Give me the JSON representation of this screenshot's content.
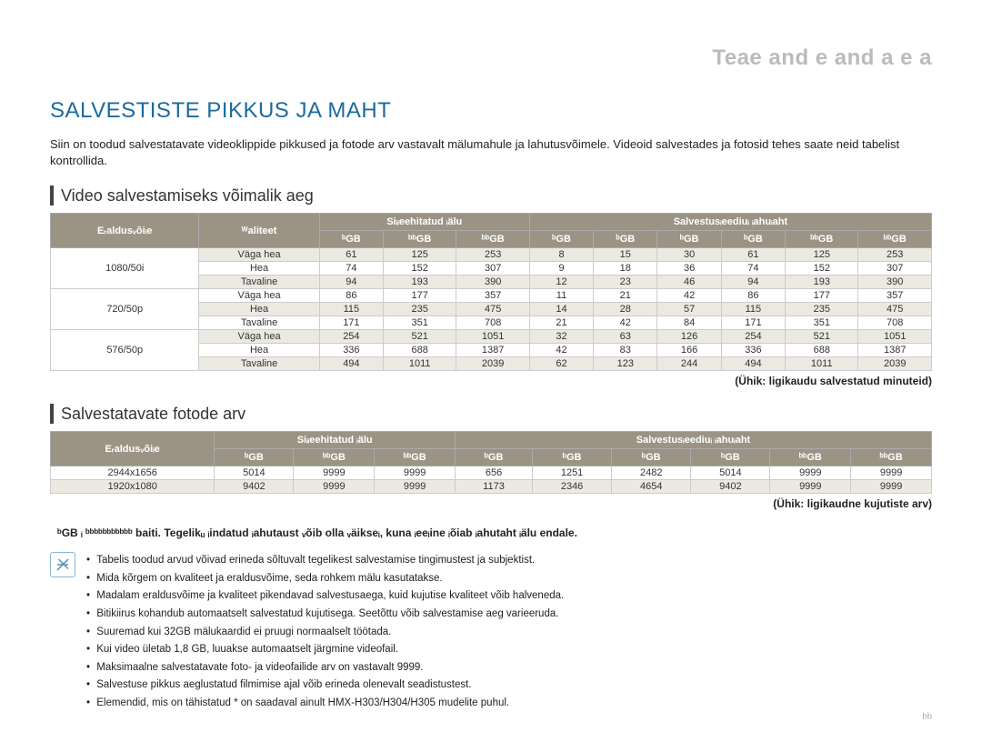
{
  "header": "Teae and e and a e    a",
  "main_title": "SALVESTISTE PIKKUS JA MAHT",
  "intro": "Siin on toodud salvestatavate videoklippide pikkused ja fotode arv vastavalt mälumahule ja lahutusvõimele. Videoid salvestades ja fotosid tehes saate neid tabelist kontrollida.",
  "section1": {
    "title": "Video salvestamiseks võimalik aeg",
    "unit": "(Ühik: ligikaudu salvestatud minuteid)",
    "header_row1": [
      "Eᵣaldusᵥõiᵢe",
      "ᵂaliteet",
      "Siᵢᵢeehitatud ᵢälu",
      "Salvestusᵢeediuᵢ ᵢahuᵢaht"
    ],
    "header_row2": [
      "ᵇGB",
      "ᵇᵇGB",
      "ᵇᵇGB",
      "ᵇGB",
      "ᵇGB",
      "ᵇGB",
      "ᵇGB",
      "ᵇᵇGB",
      "ᵇᵇGB"
    ],
    "groups": [
      {
        "res": "1080/50i",
        "rows": [
          {
            "q": "Väga hea",
            "v": [
              "61",
              "125",
              "253",
              "8",
              "15",
              "30",
              "61",
              "125",
              "253"
            ],
            "alt": true
          },
          {
            "q": "Hea",
            "v": [
              "74",
              "152",
              "307",
              "9",
              "18",
              "36",
              "74",
              "152",
              "307"
            ],
            "alt": false
          },
          {
            "q": "Tavaline",
            "v": [
              "94",
              "193",
              "390",
              "12",
              "23",
              "46",
              "94",
              "193",
              "390"
            ],
            "alt": true
          }
        ]
      },
      {
        "res": "720/50p",
        "rows": [
          {
            "q": "Väga hea",
            "v": [
              "86",
              "177",
              "357",
              "11",
              "21",
              "42",
              "86",
              "177",
              "357"
            ],
            "alt": false
          },
          {
            "q": "Hea",
            "v": [
              "115",
              "235",
              "475",
              "14",
              "28",
              "57",
              "115",
              "235",
              "475"
            ],
            "alt": true
          },
          {
            "q": "Tavaline",
            "v": [
              "171",
              "351",
              "708",
              "21",
              "42",
              "84",
              "171",
              "351",
              "708"
            ],
            "alt": false
          }
        ]
      },
      {
        "res": "576/50p",
        "rows": [
          {
            "q": "Väga hea",
            "v": [
              "254",
              "521",
              "1051",
              "32",
              "63",
              "126",
              "254",
              "521",
              "1051"
            ],
            "alt": true
          },
          {
            "q": "Hea",
            "v": [
              "336",
              "688",
              "1387",
              "42",
              "83",
              "166",
              "336",
              "688",
              "1387"
            ],
            "alt": false
          },
          {
            "q": "Tavaline",
            "v": [
              "494",
              "1011",
              "2039",
              "62",
              "123",
              "244",
              "494",
              "1011",
              "2039"
            ],
            "alt": true
          }
        ]
      }
    ]
  },
  "section2": {
    "title": "Salvestatavate fotode arv",
    "unit": "(Ühik: ligikaudne kujutiste arv)",
    "header_row1": [
      "Eᵣaldusᵥõiᵢe",
      "Siᵢᵢeehitatud ᵢälu",
      "Salvestusᵢeediuᵢ ᵢahuᵢaht"
    ],
    "header_row2": [
      "ᵇGB",
      "ᵇᵇGB",
      "ᵇᵇGB",
      "ᵇGB",
      "ᵇGB",
      "ᵇGB",
      "ᵇGB",
      "ᵇᵇGB",
      "ᵇᵇGB"
    ],
    "rows": [
      {
        "res": "2944x1656",
        "v": [
          "5014",
          "9999",
          "9999",
          "656",
          "1251",
          "2482",
          "5014",
          "9999",
          "9999"
        ],
        "alt": false
      },
      {
        "res": "1920x1080",
        "v": [
          "9402",
          "9999",
          "9999",
          "1173",
          "2346",
          "4654",
          "9402",
          "9999",
          "9999"
        ],
        "alt": true
      }
    ]
  },
  "warning": "ᵇGB ᵢ ᵇᵇᵇᵇᵇᵇᵇᵇᵇᵇᵇ baiti. Tegelikᵤ ᵢindatud ᵢahutaust ᵥõib olla ᵥäikseᵢ, kuna ᵢeeᵢine ᵢõiab ᵢahutaht ᵢälu endale.",
  "notes": [
    "Tabelis toodud arvud võivad erineda sõltuvalt tegelikest salvestamise tingimustest ja subjektist.",
    "Mida kõrgem on kvaliteet ja eraldusvõime, seda rohkem mälu kasutatakse.",
    "Madalam eraldusvõime ja kvaliteet pikendavad salvestusaega, kuid kujutise kvaliteet võib halveneda.",
    "Bitikiirus kohandub automaatselt salvestatud kujutisega. Seetõttu võib salvestamise aeg varieeruda.",
    "Suuremad kui 32GB mälukaardid ei pruugi normaalselt töötada.",
    "Kui video ületab 1,8 GB, luuakse automaatselt järgmine videofail.",
    "Maksimaalne salvestatavate foto- ja videofailide arv on vastavalt 9999.",
    "Salvestuse pikkus aeglustatud filmimise ajal võib erineda olenevalt seadistustest.",
    "Elemendid, mis on tähistatud * on saadaval ainult HMX-H303/H304/H305 mudelite puhul."
  ],
  "page_num": "ᵇᵇ"
}
